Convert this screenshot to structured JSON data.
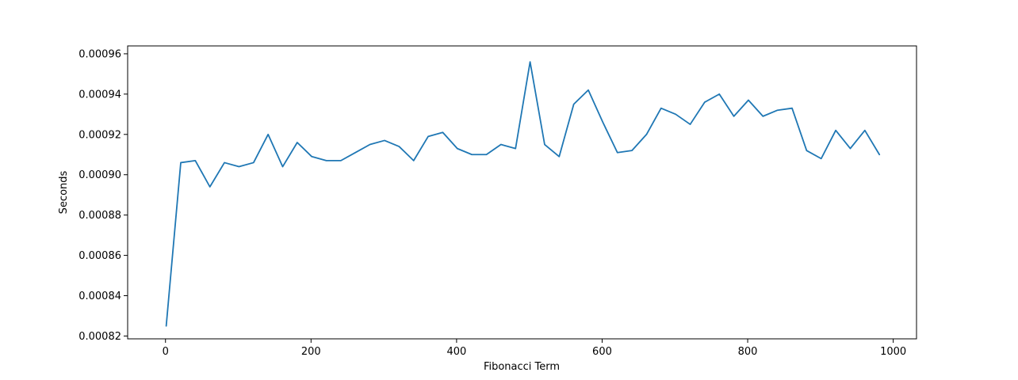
{
  "chart_data": {
    "type": "line",
    "title": "",
    "xlabel": "Fibonacci Term",
    "ylabel": "Seconds",
    "xlim": [
      -52,
      1032
    ],
    "ylim": [
      0.0008186,
      0.0009639
    ],
    "grid": false,
    "x_ticks": [
      0,
      200,
      400,
      600,
      800,
      1000
    ],
    "x_tick_labels": [
      "0",
      "200",
      "400",
      "600",
      "800",
      "1000"
    ],
    "y_ticks": [
      0.00082,
      0.00084,
      0.00086,
      0.00088,
      0.0009,
      0.00092,
      0.00094,
      0.00096
    ],
    "y_tick_labels": [
      "0.00082",
      "0.00084",
      "0.00086",
      "0.00088",
      "0.00090",
      "0.00092",
      "0.00094",
      "0.00096"
    ],
    "series": [
      {
        "color": "#1f77b4",
        "x": [
          1,
          21,
          41,
          61,
          81,
          101,
          121,
          141,
          161,
          181,
          201,
          221,
          241,
          261,
          281,
          301,
          321,
          341,
          361,
          381,
          401,
          421,
          441,
          461,
          481,
          501,
          521,
          541,
          561,
          581,
          601,
          621,
          641,
          661,
          681,
          701,
          721,
          741,
          761,
          781,
          801,
          821,
          841,
          861,
          881,
          901,
          921,
          941,
          961,
          981
        ],
        "values": [
          0.000825,
          0.000906,
          0.000907,
          0.000894,
          0.000906,
          0.000904,
          0.000906,
          0.00092,
          0.000904,
          0.000916,
          0.000909,
          0.000907,
          0.000907,
          0.000911,
          0.000915,
          0.000917,
          0.000914,
          0.000907,
          0.000919,
          0.000921,
          0.000913,
          0.00091,
          0.00091,
          0.000915,
          0.000913,
          0.000956,
          0.000915,
          0.000909,
          0.000935,
          0.000942,
          0.000926,
          0.000911,
          0.000912,
          0.00092,
          0.000933,
          0.00093,
          0.000925,
          0.000936,
          0.00094,
          0.000929,
          0.000937,
          0.000929,
          0.000932,
          0.000933,
          0.000912,
          0.000908,
          0.000922,
          0.000913,
          0.000922,
          0.00091
        ]
      }
    ]
  }
}
